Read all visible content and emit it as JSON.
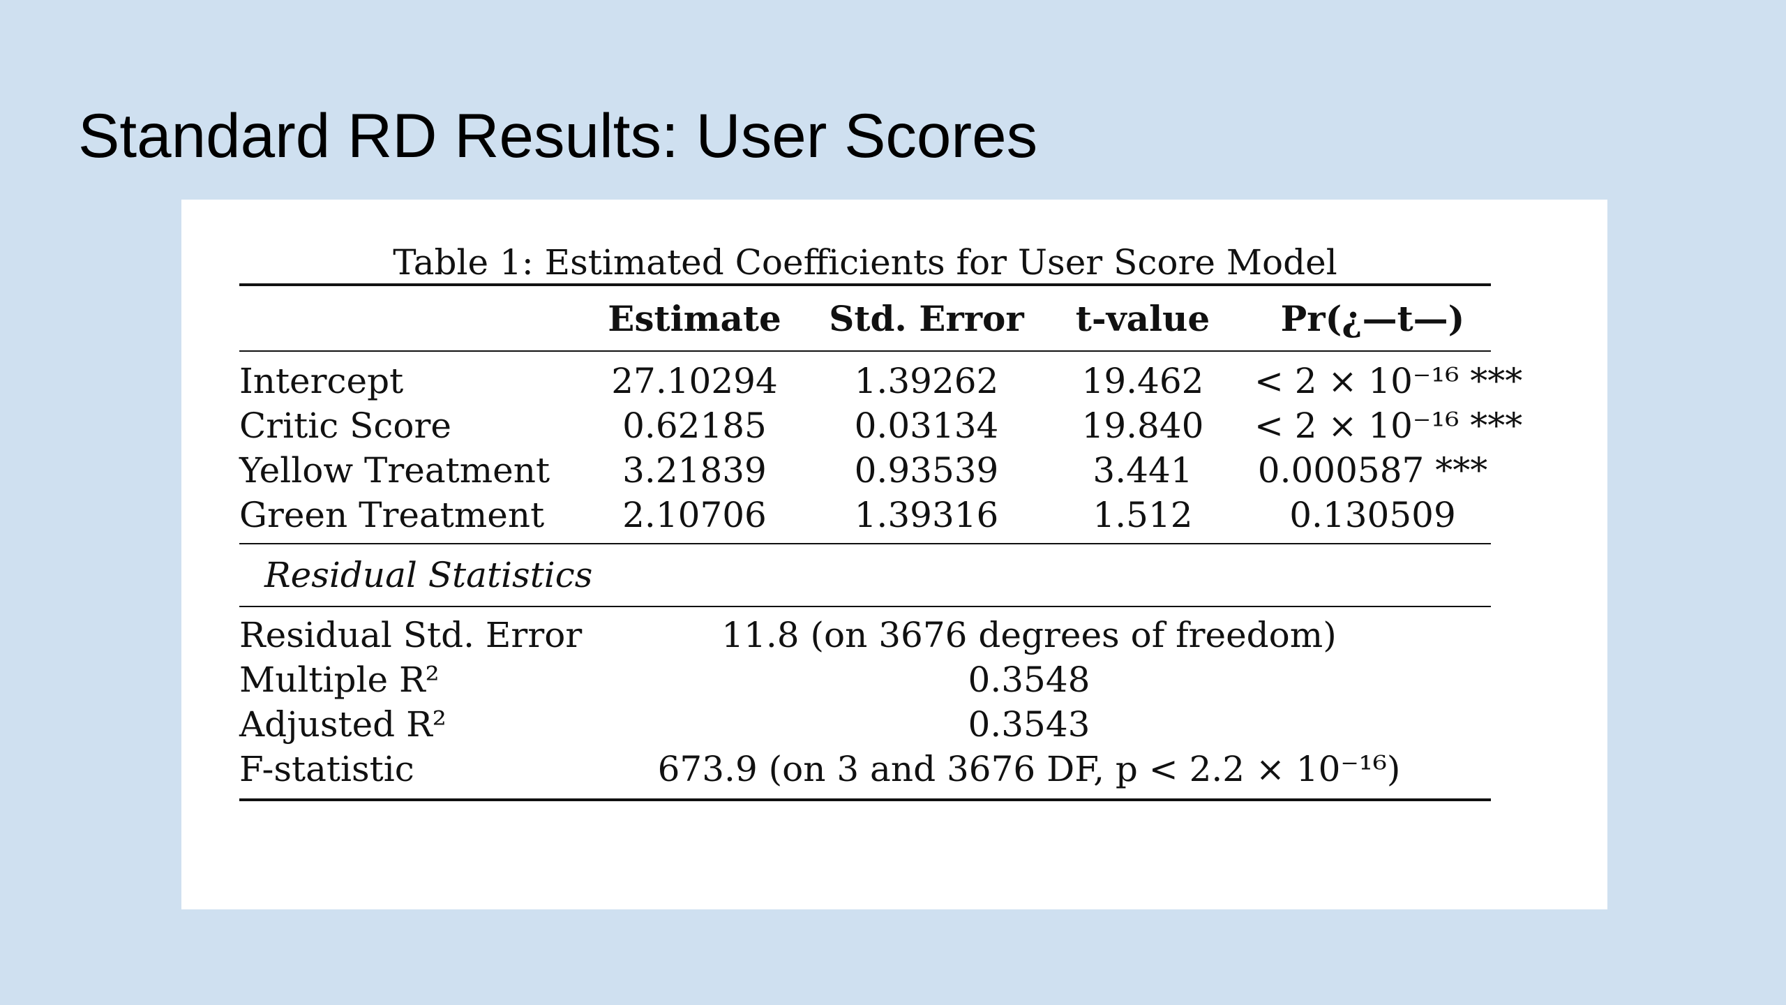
{
  "slide": {
    "title": "Standard RD Results: User Scores"
  },
  "table": {
    "caption": "Table 1: Estimated Coefficients for User Score Model",
    "headers": [
      "",
      "Estimate",
      "Std. Error",
      "t-value",
      "Pr(¿—t—)"
    ],
    "rows": [
      [
        "Intercept",
        "27.10294",
        "1.39262",
        "19.462",
        "< 2 × 10⁻¹⁶ ***"
      ],
      [
        "Critic Score",
        "0.62185",
        "0.03134",
        "19.840",
        "< 2 × 10⁻¹⁶ ***"
      ],
      [
        "Yellow Treatment",
        "3.21839",
        "0.93539",
        "3.441",
        "0.000587 ***"
      ],
      [
        "Green Treatment",
        "2.10706",
        "1.39316",
        "1.512",
        "0.130509"
      ]
    ],
    "section_title": "Residual Statistics",
    "stats": [
      [
        "Residual Std. Error",
        "11.8 (on 3676 degrees of freedom)"
      ],
      [
        "Multiple R²",
        "0.3548"
      ],
      [
        "Adjusted R²",
        "0.3543"
      ],
      [
        "F-statistic",
        "673.9 (on 3 and 3676 DF, p < 2.2 × 10⁻¹⁶)"
      ]
    ]
  }
}
